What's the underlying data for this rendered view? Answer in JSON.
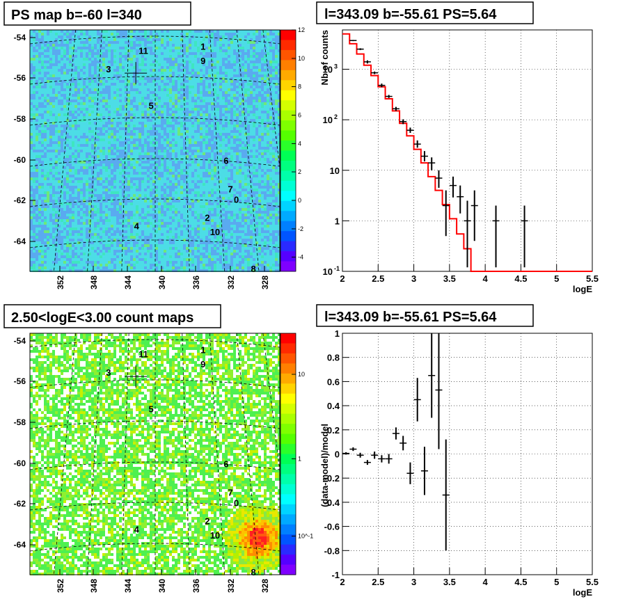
{
  "chart_data": [
    {
      "type": "heatmap",
      "title": "PS map b=-60 l=340",
      "x_ticks": [
        "352",
        "348",
        "344",
        "340",
        "336",
        "332",
        "328"
      ],
      "y_ticks": [
        "-54",
        "-56",
        "-58",
        "-60",
        "-62",
        "-64"
      ],
      "colorbar_ticks": [
        "12",
        "10",
        "8",
        "6",
        "4",
        "2",
        "0",
        "-2",
        "-4"
      ],
      "zlim": [
        -5,
        12
      ],
      "marked_sources": [
        "0",
        "1",
        "2",
        "3",
        "4",
        "5",
        "6",
        "7",
        "8",
        "9",
        "10",
        "11"
      ],
      "cursor": "+"
    },
    {
      "type": "line",
      "title": "l=343.09 b=-55.61 PS=5.64",
      "xlabel": "logE",
      "ylabel": "Nb of counts",
      "yscale": "log",
      "xlim": [
        2,
        5.5
      ],
      "ylim": [
        0.1,
        6000
      ],
      "x_ticks": [
        "2",
        "2.5",
        "3",
        "3.5",
        "4",
        "4.5",
        "5",
        "5.5"
      ],
      "y_ticks": [
        "10^-1",
        "1",
        "10",
        "10^2",
        "10^3"
      ],
      "grid": true,
      "series": [
        {
          "style": "step",
          "color": "#ff0000",
          "bin_edges": [
            2.0,
            2.1,
            2.2,
            2.3,
            2.4,
            2.5,
            2.6,
            2.7,
            2.8,
            2.9,
            3.0,
            3.1,
            3.2,
            3.3,
            3.4,
            3.5,
            3.6,
            3.7,
            3.8,
            3.9,
            4.0,
            4.1,
            4.2,
            4.3,
            4.4,
            4.5,
            4.6,
            4.7,
            4.8,
            4.9,
            5.0,
            5.1,
            5.2,
            5.3,
            5.4,
            5.5
          ],
          "values": [
            5000,
            3200,
            2000,
            1200,
            750,
            450,
            260,
            150,
            85,
            48,
            26,
            14,
            7.5,
            4,
            2.1,
            1.1,
            0.55,
            0.28,
            0.1,
            0.1,
            0.1,
            0.1,
            0.1,
            0.1,
            0.1,
            0.1,
            0.1,
            0.1,
            0.1,
            0.1,
            0.1,
            0.1,
            0.1,
            0.1,
            0.1
          ]
        },
        {
          "style": "errorbar",
          "color": "#000000",
          "x": [
            2.15,
            2.25,
            2.35,
            2.45,
            2.55,
            2.65,
            2.75,
            2.85,
            2.95,
            3.05,
            3.15,
            3.25,
            3.35,
            3.45,
            3.55,
            3.65,
            3.75,
            3.85,
            4.15,
            4.55
          ],
          "y": [
            3700,
            2500,
            1400,
            850,
            480,
            290,
            165,
            92,
            62,
            33,
            19,
            14,
            7,
            2,
            5,
            3,
            1,
            2,
            1,
            1
          ],
          "ylow": [
            3600,
            2400,
            1300,
            800,
            440,
            270,
            150,
            82,
            55,
            28,
            15,
            10,
            4.5,
            0.5,
            2.9,
            1.4,
            0.12,
            0.4,
            0.12,
            0.12
          ],
          "yhigh": [
            3800,
            2600,
            1500,
            900,
            520,
            310,
            180,
            102,
            70,
            39,
            24,
            18,
            10,
            4,
            7.5,
            5,
            2.5,
            4,
            2,
            2
          ]
        }
      ]
    },
    {
      "type": "heatmap",
      "title": "2.50<logE<3.00 count maps",
      "x_ticks": [
        "352",
        "348",
        "344",
        "340",
        "336",
        "332",
        "328"
      ],
      "y_ticks": [
        "-54",
        "-56",
        "-58",
        "-60",
        "-62",
        "-64"
      ],
      "colorbar_ticks": [
        "10",
        "1",
        "10^-1"
      ],
      "zscale": "log",
      "marked_sources": [
        "0",
        "1",
        "2",
        "3",
        "4",
        "5",
        "6",
        "7",
        "8",
        "9",
        "10",
        "11"
      ],
      "cursor": "+"
    },
    {
      "type": "scatter",
      "title": "l=343.09 b=-55.61 PS=5.64",
      "xlabel": "logE",
      "ylabel": "(data-model)/model",
      "xlim": [
        2,
        5.5
      ],
      "ylim": [
        -1,
        1
      ],
      "x_ticks": [
        "2",
        "2.5",
        "3",
        "3.5",
        "4",
        "4.5",
        "5",
        "5.5"
      ],
      "y_ticks": [
        "1",
        "0.8",
        "0.6",
        "0.4",
        "0.2",
        "0",
        "-0.2",
        "-0.4",
        "-0.6",
        "-0.8",
        "-1"
      ],
      "grid": true,
      "series": [
        {
          "style": "errorbar",
          "color": "#000000",
          "x": [
            2.05,
            2.15,
            2.25,
            2.35,
            2.45,
            2.55,
            2.65,
            2.75,
            2.85,
            2.95,
            3.05,
            3.15,
            3.25,
            3.35,
            3.45
          ],
          "y": [
            0.005,
            0.04,
            -0.01,
            -0.07,
            -0.01,
            -0.04,
            -0.04,
            0.17,
            0.09,
            -0.16,
            0.45,
            -0.14,
            0.65,
            0.53,
            -0.34
          ],
          "ylow": [
            -0.005,
            0.025,
            -0.03,
            -0.09,
            -0.04,
            -0.07,
            -0.08,
            0.12,
            0.03,
            -0.25,
            0.27,
            -0.34,
            0.3,
            0.04,
            -0.8
          ],
          "yhigh": [
            0.015,
            0.055,
            0.01,
            -0.05,
            0.02,
            -0.01,
            0,
            0.22,
            0.15,
            -0.07,
            0.63,
            0.06,
            1,
            1,
            0.12
          ]
        }
      ]
    }
  ],
  "panels": {
    "map1": {
      "sources": [
        {
          "label": "0",
          "l": 331.3,
          "b": -62.1
        },
        {
          "label": "1",
          "l": 335.2,
          "b": -54.6
        },
        {
          "label": "2",
          "l": 334.7,
          "b": -63.0
        },
        {
          "label": "3",
          "l": 346.3,
          "b": -55.7
        },
        {
          "label": "4",
          "l": 343.0,
          "b": -63.4
        },
        {
          "label": "5",
          "l": 341.3,
          "b": -57.5
        },
        {
          "label": "6",
          "l": 332.5,
          "b": -60.2
        },
        {
          "label": "7",
          "l": 332.0,
          "b": -61.6
        },
        {
          "label": "8",
          "l": 329.3,
          "b": -65.5
        },
        {
          "label": "9",
          "l": 335.2,
          "b": -55.3
        },
        {
          "label": "10",
          "l": 333.8,
          "b": -63.7
        },
        {
          "label": "11",
          "l": 342.2,
          "b": -54.8
        }
      ]
    }
  }
}
